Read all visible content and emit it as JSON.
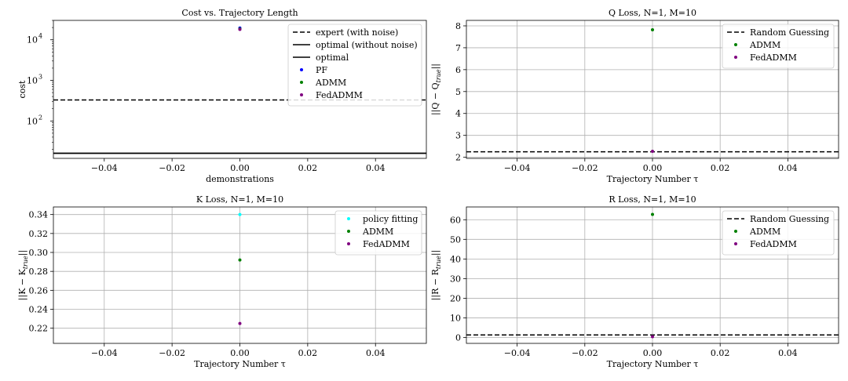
{
  "chart_data": [
    {
      "type": "scatter",
      "title": "Cost vs. Trajectory Length",
      "xlabel": "demonstrations",
      "ylabel": "cost",
      "xlim": [
        -0.055,
        0.055
      ],
      "ylim": [
        12,
        30000
      ],
      "yscale": "log",
      "xticks": [
        -0.04,
        -0.02,
        0.0,
        0.02,
        0.04
      ],
      "xtick_labels": [
        "−0.04",
        "−0.02",
        "0.00",
        "0.02",
        "0.04"
      ],
      "yticks": [
        100,
        1000,
        10000
      ],
      "ytick_labels": [
        "10",
        "10",
        "10"
      ],
      "ytick_exponents": [
        "2",
        "3",
        "4"
      ],
      "grid": false,
      "legend_position": "top-right",
      "hlines": [
        {
          "name": "expert (with noise)",
          "y": 330,
          "style": "dashed",
          "color": "#000000"
        },
        {
          "name": "optimal (without noise)",
          "y": 16,
          "style": "solid",
          "color": "#000000"
        },
        {
          "name": "optimal",
          "y": 16,
          "style": "solid",
          "color": "#000000"
        }
      ],
      "series": [
        {
          "name": "PF",
          "x": [
            0.0
          ],
          "y": [
            19500
          ],
          "color": "#0000ff"
        },
        {
          "name": "ADMM",
          "x": [
            0.0
          ],
          "y": [
            18500
          ],
          "color": "#008000"
        },
        {
          "name": "FedADMM",
          "x": [
            0.0
          ],
          "y": [
            18000
          ],
          "color": "#800080"
        }
      ]
    },
    {
      "type": "scatter",
      "title": "Q Loss, N=1, M=10",
      "xlabel": "Trajectory Number τ",
      "ylabel": "||Q − Q_true||",
      "xlim": [
        -0.055,
        0.055
      ],
      "ylim": [
        1.95,
        8.25
      ],
      "xticks": [
        -0.04,
        -0.02,
        0.0,
        0.02,
        0.04
      ],
      "xtick_labels": [
        "−0.04",
        "−0.02",
        "0.00",
        "0.02",
        "0.04"
      ],
      "yticks": [
        2,
        3,
        4,
        5,
        6,
        7,
        8
      ],
      "ytick_labels": [
        "2",
        "3",
        "4",
        "5",
        "6",
        "7",
        "8"
      ],
      "grid": true,
      "legend_position": "top-right",
      "hlines": [
        {
          "name": "Random Guessing",
          "y": 2.25,
          "style": "dashed",
          "color": "#000000"
        }
      ],
      "series": [
        {
          "name": "ADMM",
          "x": [
            0.0
          ],
          "y": [
            7.82
          ],
          "color": "#008000"
        },
        {
          "name": "FedADMM",
          "x": [
            0.0
          ],
          "y": [
            2.27
          ],
          "color": "#800080"
        }
      ]
    },
    {
      "type": "scatter",
      "title": "K Loss, N=1, M=10",
      "xlabel": "Trajectory Number τ",
      "ylabel": "||K − K_true||",
      "xlim": [
        -0.055,
        0.055
      ],
      "ylim": [
        0.204,
        0.348
      ],
      "xticks": [
        -0.04,
        -0.02,
        0.0,
        0.02,
        0.04
      ],
      "xtick_labels": [
        "−0.04",
        "−0.02",
        "0.00",
        "0.02",
        "0.04"
      ],
      "yticks": [
        0.22,
        0.24,
        0.26,
        0.28,
        0.3,
        0.32,
        0.34
      ],
      "ytick_labels": [
        "0.22",
        "0.24",
        "0.26",
        "0.28",
        "0.30",
        "0.32",
        "0.34"
      ],
      "grid": true,
      "legend_position": "top-right",
      "hlines": [],
      "series": [
        {
          "name": "policy fitting",
          "x": [
            0.0
          ],
          "y": [
            0.34
          ],
          "color": "#00ffff"
        },
        {
          "name": "ADMM",
          "x": [
            0.0
          ],
          "y": [
            0.292
          ],
          "color": "#008000"
        },
        {
          "name": "FedADMM",
          "x": [
            0.0
          ],
          "y": [
            0.225
          ],
          "color": "#800080"
        }
      ]
    },
    {
      "type": "scatter",
      "title": "R Loss, N=1, M=10",
      "xlabel": "Trajectory Number τ",
      "ylabel": "||R − R_true||",
      "xlim": [
        -0.055,
        0.055
      ],
      "ylim": [
        -3.0,
        66.5
      ],
      "xticks": [
        -0.04,
        -0.02,
        0.0,
        0.02,
        0.04
      ],
      "xtick_labels": [
        "−0.04",
        "−0.02",
        "0.00",
        "0.02",
        "0.04"
      ],
      "yticks": [
        0,
        10,
        20,
        30,
        40,
        50,
        60
      ],
      "ytick_labels": [
        "0",
        "10",
        "20",
        "30",
        "40",
        "50",
        "60"
      ],
      "grid": true,
      "legend_position": "top-right",
      "hlines": [
        {
          "name": "Random Guessing",
          "y": 1.3,
          "style": "dashed",
          "color": "#000000"
        }
      ],
      "series": [
        {
          "name": "ADMM",
          "x": [
            0.0
          ],
          "y": [
            62.7
          ],
          "color": "#008000"
        },
        {
          "name": "FedADMM",
          "x": [
            0.0
          ],
          "y": [
            0.4
          ],
          "color": "#800080"
        }
      ]
    }
  ]
}
